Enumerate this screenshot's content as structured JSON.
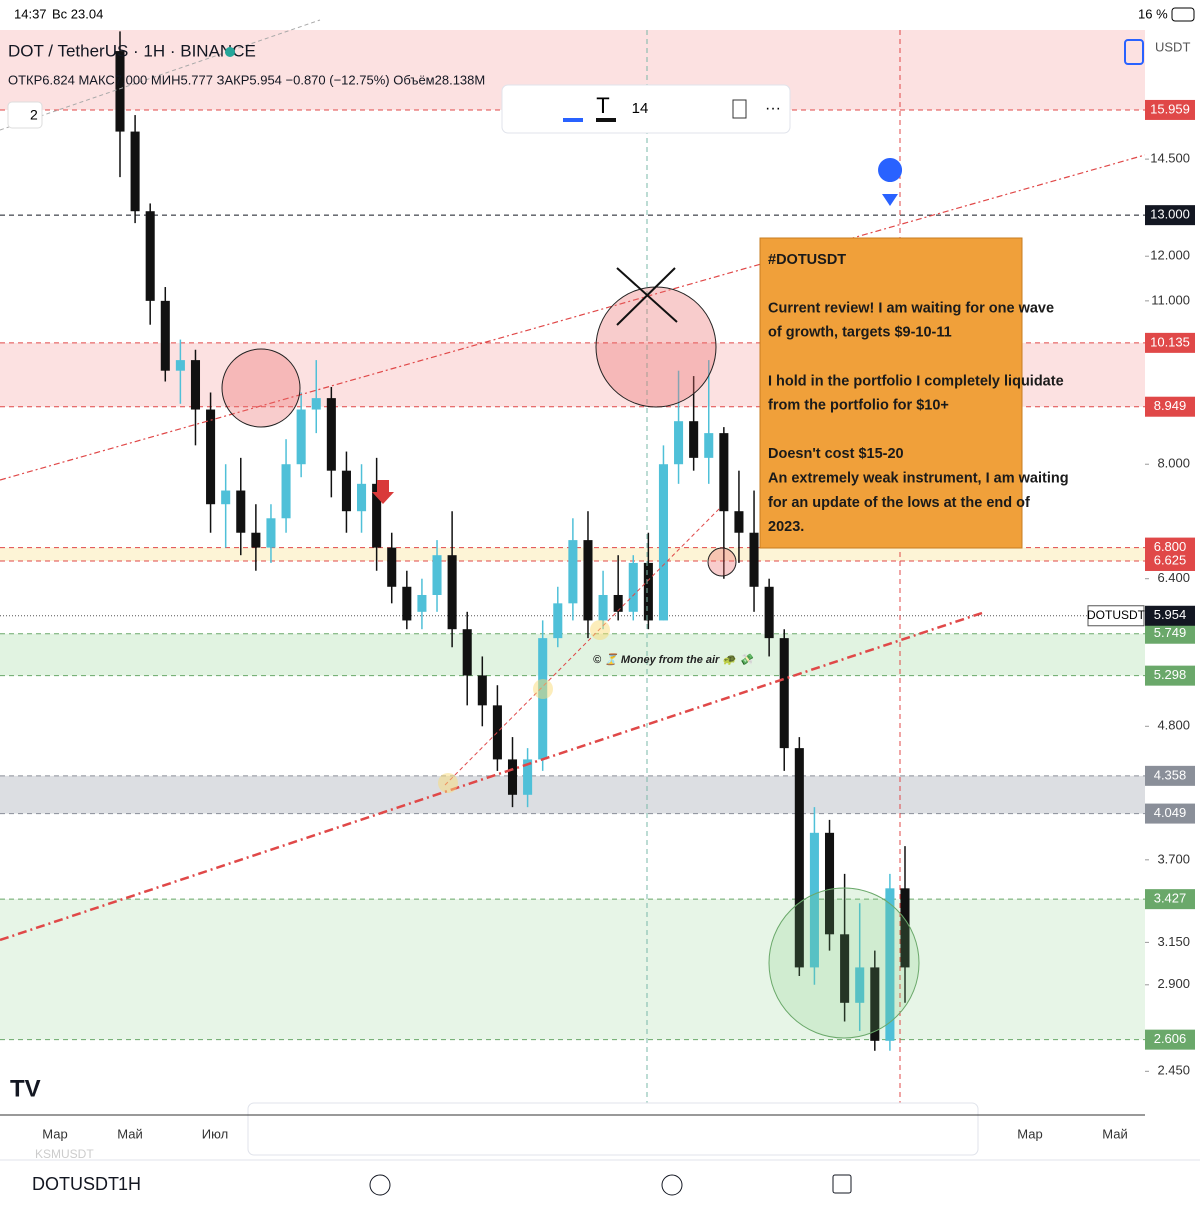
{
  "status": {
    "time": "14:37",
    "date": "Вс 23.04",
    "battery": "16 %"
  },
  "header": {
    "symbol": "DOT / TetherUS · 1H · BINANCE",
    "ohlc": "ОТКР6.824 МАКС7.000 МИН5.777 ЗАКР5.954 −0.870 (−12.75%) Объём28.138M",
    "interval": "2",
    "currency": "USDT"
  },
  "toolbar": {
    "font_size": "14"
  },
  "chart_data": {
    "type": "candlestick",
    "log_scale": true,
    "ylim": [
      2.25,
      18.65
    ],
    "up_color": "#4fc0d8",
    "down_color": "#111111",
    "open": [
      17.9,
      15.3,
      13.1,
      11.0,
      9.6,
      9.8,
      8.9,
      7.4,
      7.6,
      7.0,
      6.8,
      7.2,
      8.0,
      8.9,
      9.1,
      7.9,
      7.3,
      7.7,
      6.8,
      6.3,
      6.0,
      6.2,
      6.7,
      5.8,
      5.3,
      5.0,
      4.5,
      4.2,
      4.5,
      5.7,
      6.1,
      6.9,
      5.9,
      6.2,
      6.0,
      6.6,
      5.9,
      8.0,
      8.7,
      8.1,
      8.5,
      7.3,
      7.0,
      6.3,
      5.7,
      4.6,
      3.0,
      3.9,
      3.2,
      2.8,
      3.0,
      2.6,
      3.5
    ],
    "high": [
      18.6,
      15.8,
      13.3,
      11.3,
      10.2,
      10.0,
      9.2,
      8.0,
      8.1,
      7.4,
      7.4,
      8.4,
      9.2,
      9.8,
      9.3,
      8.2,
      8.0,
      8.1,
      7.0,
      6.5,
      6.4,
      6.9,
      7.3,
      6.0,
      5.5,
      5.2,
      4.7,
      4.6,
      5.9,
      6.3,
      7.2,
      7.3,
      6.5,
      6.7,
      6.7,
      7.0,
      8.3,
      9.6,
      9.5,
      9.8,
      8.6,
      7.9,
      7.6,
      6.4,
      5.8,
      4.7,
      4.1,
      4.0,
      3.6,
      3.4,
      3.1,
      3.6,
      3.8
    ],
    "low": [
      14.0,
      12.8,
      10.5,
      9.4,
      9.0,
      8.3,
      7.0,
      6.8,
      6.7,
      6.5,
      6.6,
      7.0,
      7.8,
      8.5,
      7.5,
      7.0,
      7.0,
      6.5,
      6.1,
      5.8,
      5.8,
      6.0,
      5.6,
      5.0,
      4.8,
      4.4,
      4.1,
      4.1,
      4.4,
      5.6,
      5.9,
      5.7,
      5.8,
      5.9,
      5.9,
      5.8,
      5.9,
      7.7,
      7.9,
      7.7,
      6.4,
      6.6,
      6.0,
      5.5,
      4.4,
      2.95,
      2.9,
      3.1,
      2.7,
      2.65,
      2.55,
      2.55,
      2.8
    ],
    "close": [
      15.3,
      13.1,
      11.0,
      9.6,
      9.8,
      8.9,
      7.4,
      7.6,
      7.0,
      6.8,
      7.2,
      8.0,
      8.9,
      9.1,
      7.9,
      7.3,
      7.7,
      6.8,
      6.3,
      5.9,
      6.2,
      6.7,
      5.8,
      5.3,
      5.0,
      4.5,
      4.2,
      4.5,
      5.7,
      6.1,
      6.9,
      5.9,
      6.2,
      6.0,
      6.6,
      5.9,
      8.0,
      8.7,
      8.1,
      8.5,
      7.3,
      7.0,
      6.3,
      5.7,
      4.6,
      3.0,
      3.9,
      3.2,
      2.8,
      3.0,
      2.6,
      3.5,
      3.0
    ],
    "yticks": [
      {
        "value": 14.5,
        "label": "14.500"
      },
      {
        "value": 12,
        "label": "12.000"
      },
      {
        "value": 11,
        "label": "11.000"
      },
      {
        "value": 8,
        "label": "8.000"
      },
      {
        "value": 6.4,
        "label": "6.400"
      },
      {
        "value": 4.8,
        "label": "4.800"
      },
      {
        "value": 3.7,
        "label": "3.700"
      },
      {
        "value": 3.15,
        "label": "3.150"
      },
      {
        "value": 2.9,
        "label": "2.900"
      },
      {
        "value": 2.45,
        "label": "2.450"
      }
    ],
    "levels": [
      {
        "value": 15.959,
        "label": "15.959",
        "color": "#e04848"
      },
      {
        "value": 13,
        "label": "13.000",
        "color": "#131722"
      },
      {
        "value": 10.135,
        "label": "10.135",
        "color": "#e04848"
      },
      {
        "value": 8.949,
        "label": "8.949",
        "color": "#e04848"
      },
      {
        "value": 6.8,
        "label": "6.800",
        "color": "#e04848"
      },
      {
        "value": 6.625,
        "label": "6.625",
        "color": "#e04848"
      },
      {
        "value": 5.749,
        "label": "5.749",
        "color": "#6aa86a"
      },
      {
        "value": 5.298,
        "label": "5.298",
        "color": "#6aa86a"
      },
      {
        "value": 4.358,
        "label": "4.358",
        "color": "#8a8f99"
      },
      {
        "value": 4.049,
        "label": "4.049",
        "color": "#8a8f99"
      },
      {
        "value": 3.427,
        "label": "3.427",
        "color": "#6aa86a"
      },
      {
        "value": 2.606,
        "label": "2.606",
        "color": "#6aa86a"
      }
    ],
    "last_price": {
      "value": 5.954,
      "label": "5.954",
      "name": "DOTUSDT"
    },
    "zones": [
      {
        "from": 15.959,
        "to": 18.65,
        "color": "rgba(240,120,120,0.22)"
      },
      {
        "from": 8.949,
        "to": 10.135,
        "color": "rgba(240,120,120,0.22)"
      },
      {
        "from": 6.625,
        "to": 6.8,
        "color": "rgba(250,220,120,0.3)"
      },
      {
        "from": 5.298,
        "to": 5.749,
        "color": "rgba(120,200,120,0.22)"
      },
      {
        "from": 4.049,
        "to": 4.358,
        "color": "rgba(140,145,160,0.3)"
      },
      {
        "from": 2.606,
        "to": 3.427,
        "color": "rgba(120,200,120,0.18)"
      }
    ],
    "x_labels": [
      "Мар",
      "Май",
      "Июл",
      "Мар",
      "Май"
    ]
  },
  "note": {
    "paragraphs": [
      [
        "#DOTUSDT"
      ],
      [
        "Current review! I am waiting for one wave",
        "of growth, targets $9-10-11"
      ],
      [
        "I hold in the portfolio I completely liquidate",
        "from the portfolio for $10+"
      ],
      [
        "Doesn't cost $15-20",
        "An extremely weak instrument, I am waiting",
        "for an update of the lows at the end of",
        "2023."
      ]
    ]
  },
  "annotation": "© ⏳ Money from the air 🐢 💸",
  "bottom_bar": {
    "symbol": "DOTUSDT",
    "interval": "1H",
    "ghost": "KSMUSDT"
  }
}
